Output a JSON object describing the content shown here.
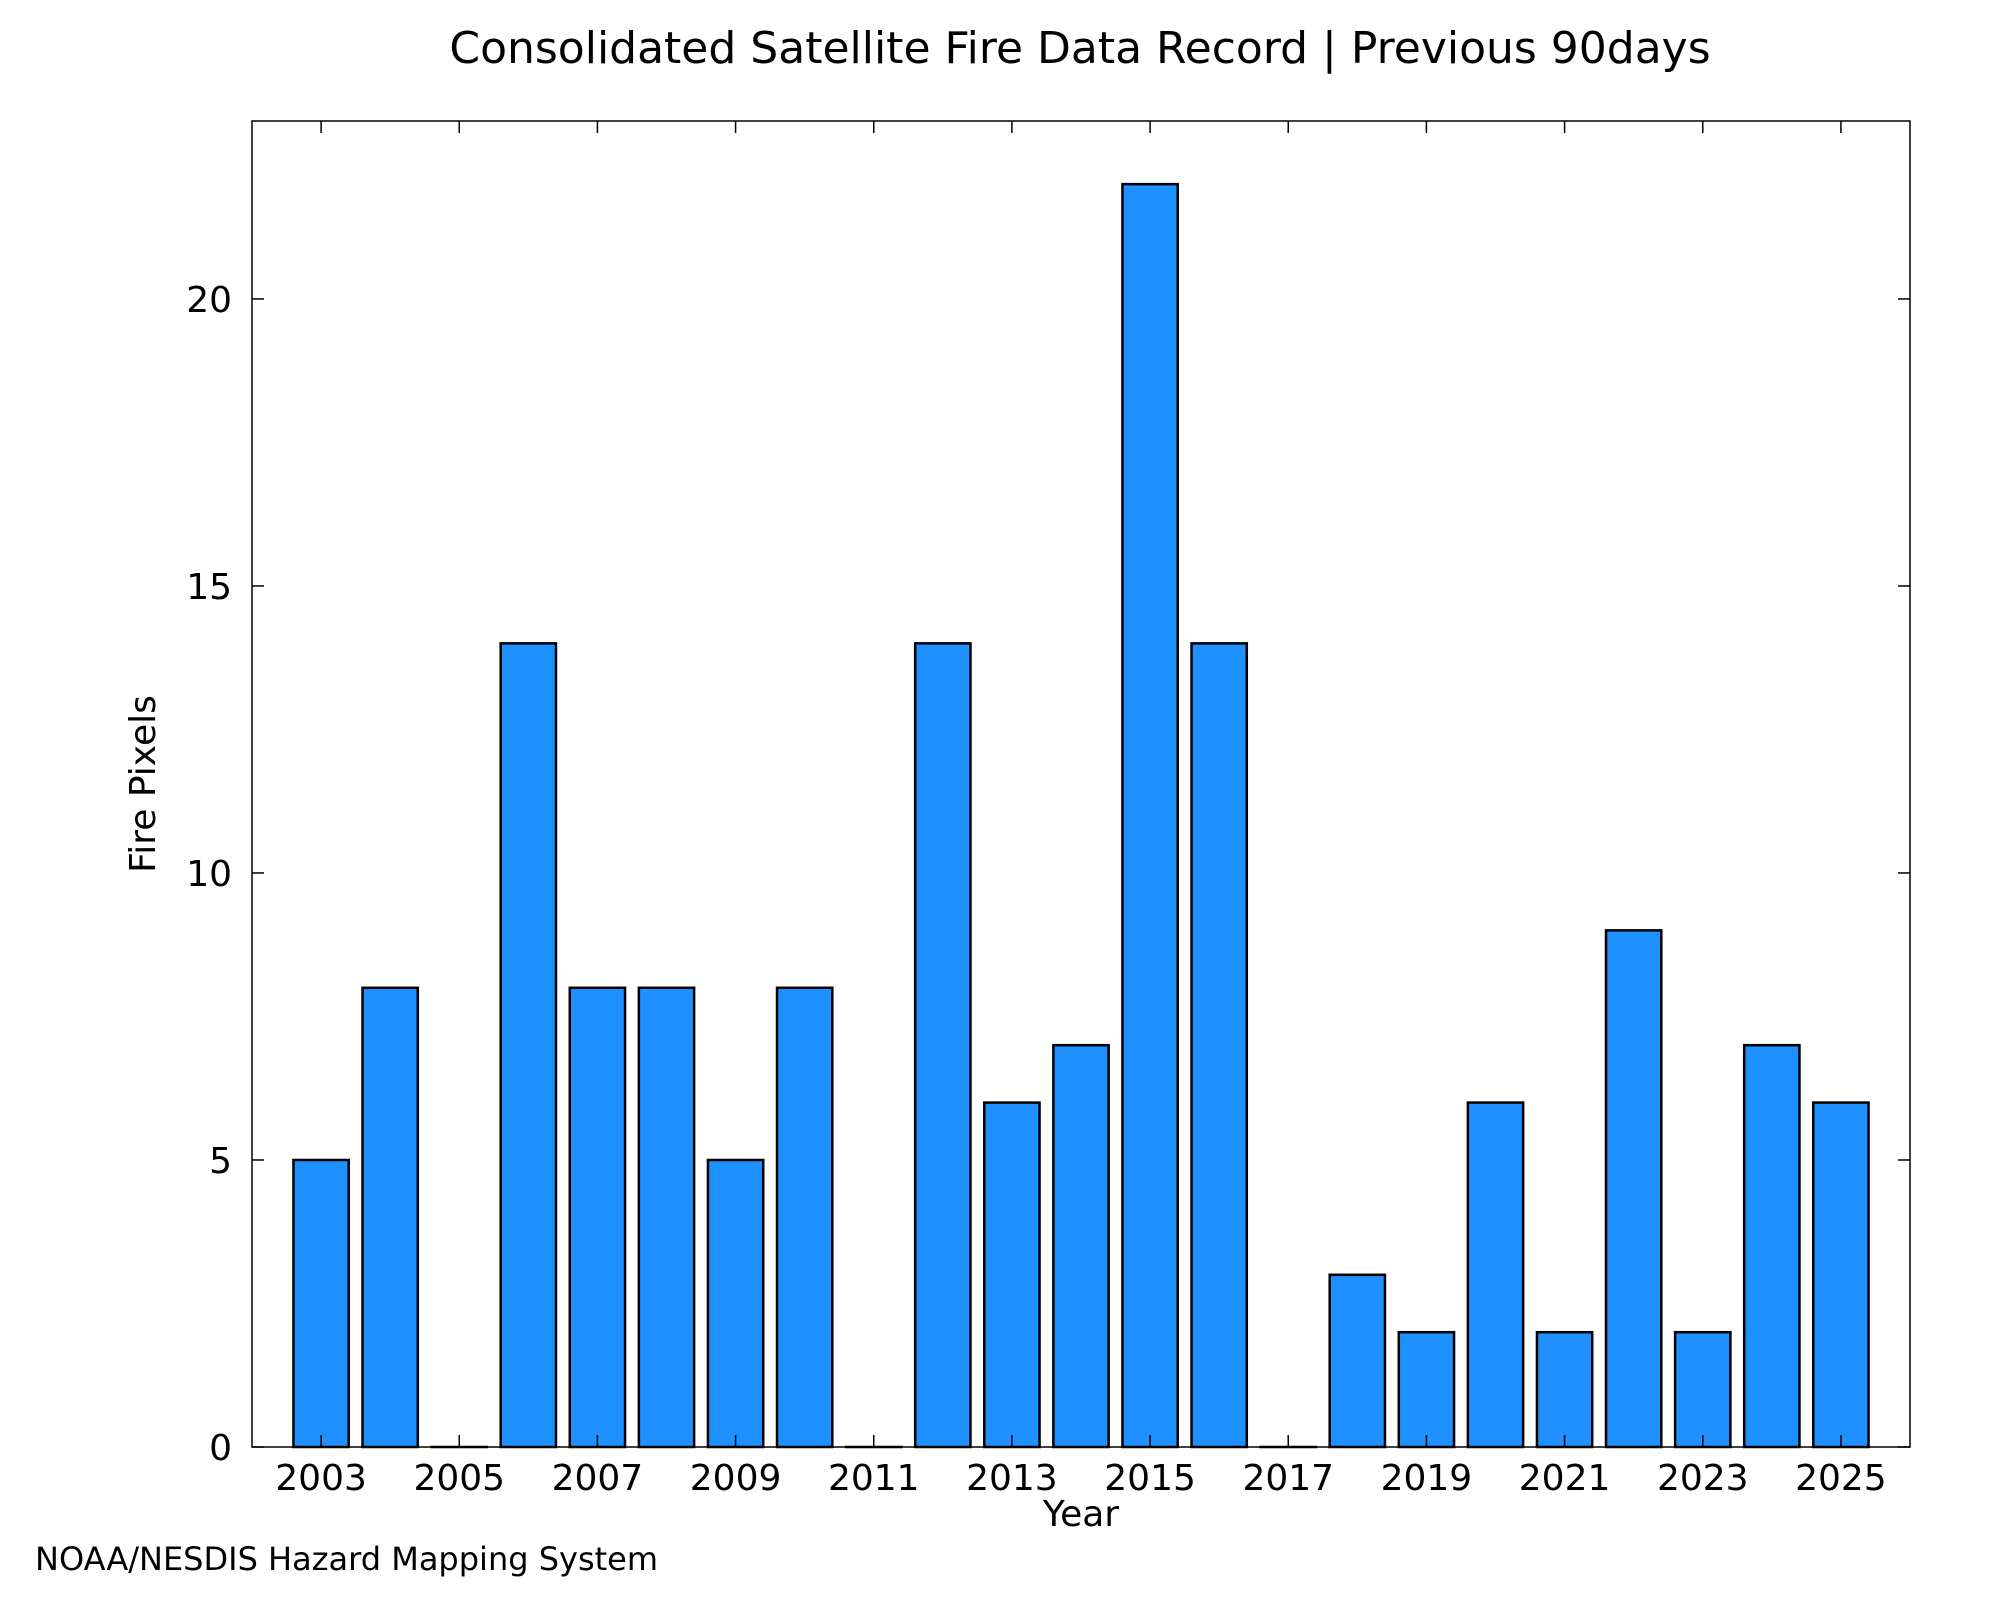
{
  "chart_data": {
    "type": "bar",
    "title": "Consolidated Satellite Fire Data Record | Previous 90days",
    "xlabel": "Year",
    "ylabel": "Fire Pixels",
    "x_range": [
      2002,
      2026
    ],
    "ylim": [
      0,
      23.1
    ],
    "yticks": [
      0,
      5,
      10,
      15,
      20
    ],
    "xticks": [
      2003,
      2005,
      2007,
      2009,
      2011,
      2013,
      2015,
      2017,
      2019,
      2021,
      2023,
      2025
    ],
    "grid": false,
    "legend": "none",
    "bar_color": "#1e90ff",
    "bar_edge_color": "#000000",
    "categories": [
      2003,
      2004,
      2005,
      2006,
      2007,
      2008,
      2009,
      2010,
      2011,
      2012,
      2013,
      2014,
      2015,
      2016,
      2017,
      2018,
      2019,
      2020,
      2021,
      2022,
      2023,
      2024,
      2025
    ],
    "values": [
      5,
      8,
      0,
      14,
      8,
      8,
      5,
      8,
      0,
      14,
      6,
      7,
      22,
      14,
      0,
      3,
      2,
      6,
      2,
      9,
      2,
      7,
      6
    ]
  },
  "footer": {
    "credit": "NOAA/NESDIS Hazard Mapping System",
    "credit_color": "#808080"
  }
}
